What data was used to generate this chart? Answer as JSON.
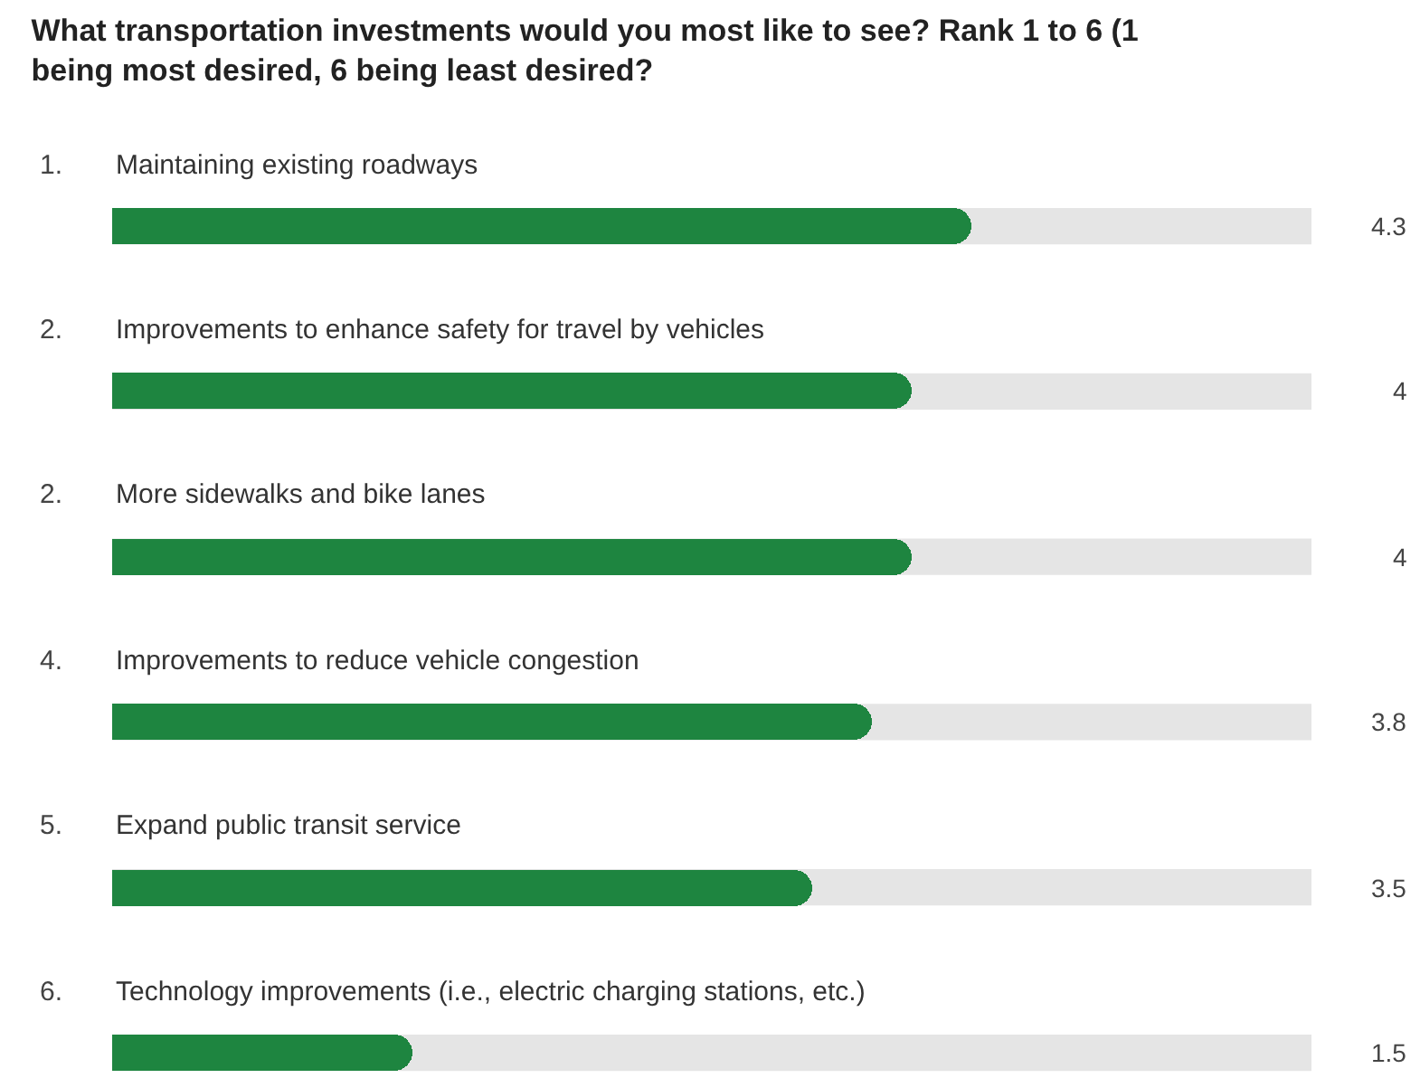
{
  "chart_data": {
    "type": "bar",
    "orientation": "horizontal",
    "title": "What transportation investments would you most like to see? Rank 1 to 6 (1 being most desired, 6 being least desired?",
    "categories": [
      "1. Maintaining existing roadways",
      "2. Improvements to enhance safety for travel by vehicles",
      "2. More sidewalks and bike lanes",
      "4. Improvements to reduce vehicle congestion",
      "5. Expand public transit service",
      "6. Technology improvements (i.e., electric charging stations, etc.)"
    ],
    "values": [
      4.3,
      4,
      4,
      3.8,
      3.5,
      1.5
    ],
    "color": "#1e8540",
    "xlim": [
      0,
      6
    ],
    "data_labels": true,
    "tick_labels": false,
    "legend": false
  }
}
